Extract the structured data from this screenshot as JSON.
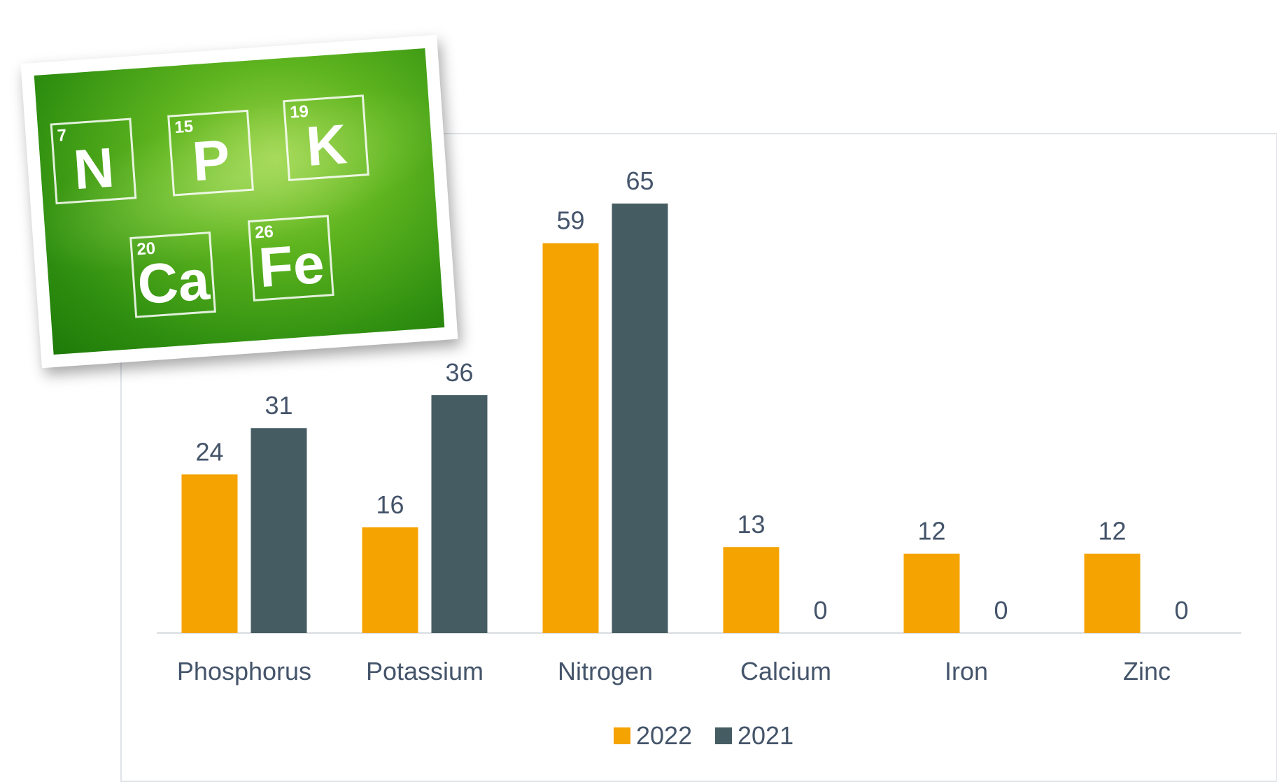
{
  "chart_data": {
    "type": "bar",
    "categories": [
      "Phosphorus",
      "Potassium",
      "Nitrogen",
      "Calcium",
      "Iron",
      "Zinc"
    ],
    "series": [
      {
        "name": "2022",
        "values": [
          24,
          16,
          59,
          13,
          12,
          12
        ],
        "color": "#f5a300"
      },
      {
        "name": "2021",
        "values": [
          31,
          36,
          65,
          0,
          0,
          0
        ],
        "color": "#465c63"
      }
    ],
    "ylim": [
      0,
      65
    ],
    "grid": false,
    "data_labels": true,
    "legend": "bottom",
    "title": "",
    "xlabel": "",
    "ylabel": ""
  },
  "badge": {
    "elements": [
      {
        "number": "7",
        "symbol": "N"
      },
      {
        "number": "15",
        "symbol": "P"
      },
      {
        "number": "19",
        "symbol": "K"
      },
      {
        "number": "20",
        "symbol": "Ca"
      },
      {
        "number": "26",
        "symbol": "Fe"
      }
    ]
  },
  "colors": {
    "axis": "#d9dce0",
    "text": "#44546a",
    "frame": "#dfe3e8"
  }
}
